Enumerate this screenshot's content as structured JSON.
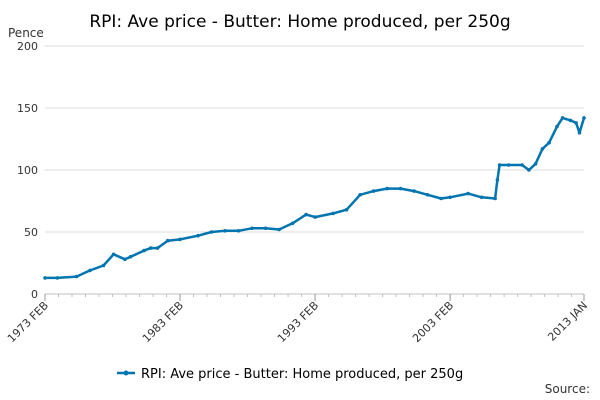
{
  "chart_data": {
    "type": "line",
    "title": "RPI: Ave price - Butter: Home produced, per 250g",
    "ylabel": "Pence",
    "xlabel": "",
    "ylim": [
      0,
      200
    ],
    "yticks": [
      0,
      50,
      100,
      150,
      200
    ],
    "xlim": [
      "1973-02",
      "2013-01"
    ],
    "xtick_labels": [
      "1973 FEB",
      "1983 FEB",
      "1993 FEB",
      "2003 FEB",
      "2013 JAN"
    ],
    "grid": true,
    "legend_position": "bottom-center",
    "series_color": "#0075b0",
    "series": [
      {
        "name": "RPI: Ave price - Butter: Home produced, per 250g",
        "x": [
          "1973-02",
          "1974-01",
          "1975-06",
          "1976-06",
          "1977-06",
          "1978-03",
          "1979-01",
          "1979-06",
          "1980-06",
          "1980-12",
          "1981-06",
          "1982-03",
          "1983-02",
          "1984-06",
          "1985-06",
          "1986-06",
          "1987-06",
          "1988-06",
          "1989-06",
          "1990-06",
          "1991-06",
          "1992-06",
          "1993-02",
          "1994-06",
          "1995-06",
          "1996-06",
          "1997-06",
          "1998-06",
          "1999-06",
          "2000-06",
          "2001-06",
          "2002-06",
          "2003-02",
          "2004-06",
          "2005-06",
          "2006-06",
          "2006-08",
          "2006-10",
          "2007-06",
          "2008-06",
          "2008-12",
          "2009-06",
          "2009-12",
          "2010-06",
          "2011-01",
          "2011-06",
          "2012-01",
          "2012-06",
          "2012-09",
          "2013-01"
        ],
        "values": [
          13,
          13,
          14,
          19,
          23,
          32,
          28,
          30,
          35,
          37,
          37,
          43,
          44,
          47,
          50,
          51,
          51,
          53,
          53,
          52,
          57,
          64,
          62,
          65,
          68,
          80,
          83,
          85,
          85,
          83,
          80,
          77,
          78,
          81,
          78,
          77,
          92,
          104,
          104,
          104,
          100,
          105,
          117,
          122,
          135,
          142,
          140,
          138,
          130,
          142
        ]
      }
    ]
  },
  "legend": {
    "label": "RPI: Ave price - Butter: Home produced, per 250g"
  },
  "footer": {
    "source": "Source:"
  }
}
